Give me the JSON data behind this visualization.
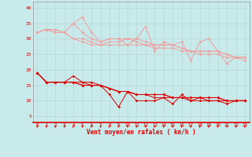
{
  "x": [
    0,
    1,
    2,
    3,
    4,
    5,
    6,
    7,
    8,
    9,
    10,
    11,
    12,
    13,
    14,
    15,
    16,
    17,
    18,
    19,
    20,
    21,
    22,
    23
  ],
  "line1": [
    32,
    33,
    32,
    32,
    35,
    37,
    32,
    29,
    30,
    30,
    28,
    30,
    34,
    26,
    29,
    28,
    29,
    23,
    29,
    30,
    26,
    22,
    24,
    24
  ],
  "line2": [
    32,
    33,
    32,
    32,
    35,
    32,
    30,
    29,
    30,
    30,
    30,
    30,
    29,
    28,
    28,
    28,
    27,
    26,
    26,
    26,
    26,
    25,
    24,
    24
  ],
  "line3": [
    32,
    33,
    33,
    32,
    30,
    30,
    29,
    28,
    29,
    29,
    30,
    29,
    28,
    28,
    28,
    28,
    27,
    26,
    26,
    26,
    26,
    25,
    24,
    24
  ],
  "line4": [
    32,
    33,
    33,
    32,
    30,
    29,
    28,
    28,
    28,
    28,
    28,
    28,
    28,
    27,
    27,
    27,
    26,
    26,
    25,
    25,
    25,
    24,
    24,
    23
  ],
  "line5": [
    19,
    16,
    16,
    16,
    18,
    16,
    16,
    15,
    12,
    8,
    13,
    10,
    10,
    10,
    11,
    9,
    12,
    10,
    11,
    10,
    10,
    9,
    10,
    10
  ],
  "line6": [
    19,
    16,
    16,
    16,
    16,
    16,
    15,
    15,
    14,
    13,
    13,
    12,
    12,
    12,
    12,
    11,
    11,
    11,
    11,
    11,
    11,
    10,
    10,
    10
  ],
  "line7": [
    19,
    16,
    16,
    16,
    16,
    15,
    15,
    15,
    14,
    13,
    13,
    12,
    12,
    12,
    12,
    11,
    11,
    11,
    11,
    11,
    11,
    10,
    10,
    10
  ],
  "line8": [
    19,
    16,
    16,
    16,
    16,
    15,
    15,
    15,
    14,
    13,
    13,
    12,
    12,
    11,
    11,
    11,
    11,
    10,
    10,
    10,
    10,
    10,
    10,
    10
  ],
  "light_color": "#f0a0a0",
  "dark_color": "#dd0000",
  "bg_color": "#c8eaea",
  "grid_color": "#b8d8d8",
  "xlabel": "Vent moyen/en rafales ( km/h )",
  "yticks": [
    5,
    10,
    15,
    20,
    25,
    30,
    35,
    40
  ],
  "ylim": [
    3,
    42
  ],
  "xlim": [
    -0.5,
    23.5
  ]
}
